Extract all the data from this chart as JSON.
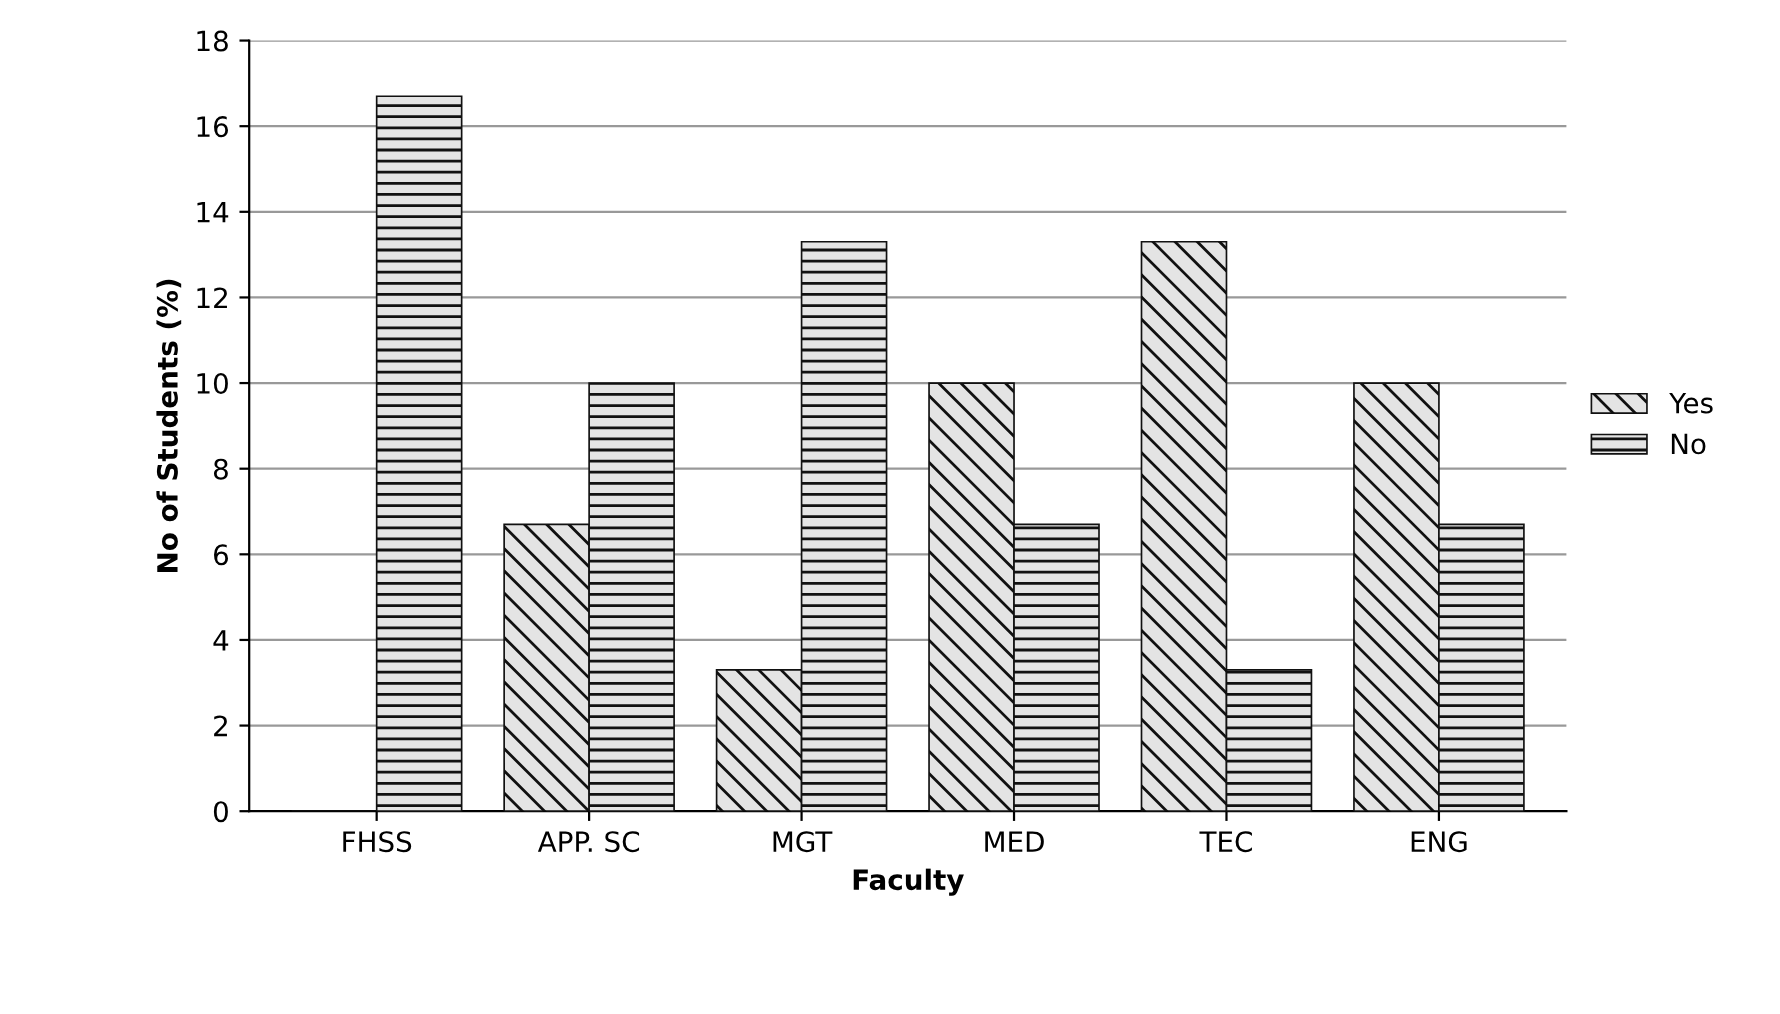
{
  "chart_data": {
    "type": "bar",
    "xlabel": "Faculty",
    "ylabel": "No of Students (%)",
    "categories": [
      "FHSS",
      "APP. SC",
      "MGT",
      "MED",
      "TEC",
      "ENG"
    ],
    "series": [
      {
        "name": "Yes",
        "color": "#111111",
        "values": [
          0,
          6.7,
          3.3,
          10,
          13.3,
          10
        ]
      },
      {
        "name": "No",
        "color": "#111111",
        "values": [
          16.7,
          10,
          13.3,
          6.7,
          3.3,
          6.7
        ]
      }
    ],
    "ylim": [
      0,
      18
    ],
    "yticks": [
      0,
      2,
      4,
      6,
      8,
      10,
      12,
      14,
      16,
      18
    ],
    "grid": "y",
    "legend": "right"
  }
}
